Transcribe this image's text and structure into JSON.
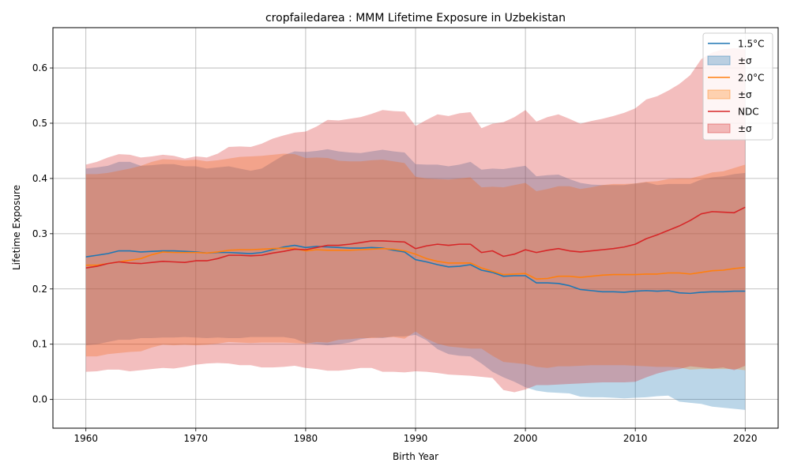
{
  "chart_data": {
    "type": "line",
    "title": "cropfailedarea : MMM Lifetime Exposure in Uzbekistan",
    "xlabel": "Birth Year",
    "ylabel": "Lifetime Exposure",
    "xlim": [
      1957,
      2023
    ],
    "ylim": [
      -0.052,
      0.673
    ],
    "x_ticks": [
      1960,
      1970,
      1980,
      1990,
      2000,
      2010,
      2020
    ],
    "x_tick_labels": [
      "1960",
      "1970",
      "1980",
      "1990",
      "2000",
      "2010",
      "2020"
    ],
    "y_ticks": [
      0.0,
      0.1,
      0.2,
      0.3,
      0.4,
      0.5,
      0.6
    ],
    "y_tick_labels": [
      "0.0",
      "0.1",
      "0.2",
      "0.3",
      "0.4",
      "0.5",
      "0.6"
    ],
    "grid": true,
    "legend_position": "top-right",
    "x": [
      1960,
      1961,
      1962,
      1963,
      1964,
      1965,
      1966,
      1967,
      1968,
      1969,
      1970,
      1971,
      1972,
      1973,
      1974,
      1975,
      1976,
      1977,
      1978,
      1979,
      1980,
      1981,
      1982,
      1983,
      1984,
      1985,
      1986,
      1987,
      1988,
      1989,
      1990,
      1991,
      1992,
      1993,
      1994,
      1995,
      1996,
      1997,
      1998,
      1999,
      2000,
      2001,
      2002,
      2003,
      2004,
      2005,
      2006,
      2007,
      2008,
      2009,
      2010,
      2011,
      2012,
      2013,
      2014,
      2015,
      2016,
      2017,
      2018,
      2019,
      2020
    ],
    "series": [
      {
        "name": "1.5°C",
        "band_label": "±σ",
        "color": "#1f77b4",
        "band_color": "#1f77b4",
        "values": [
          0.258,
          0.261,
          0.264,
          0.269,
          0.269,
          0.267,
          0.268,
          0.269,
          0.269,
          0.268,
          0.267,
          0.265,
          0.266,
          0.266,
          0.265,
          0.264,
          0.266,
          0.271,
          0.276,
          0.279,
          0.275,
          0.277,
          0.276,
          0.275,
          0.274,
          0.274,
          0.275,
          0.274,
          0.27,
          0.267,
          0.253,
          0.249,
          0.244,
          0.24,
          0.241,
          0.244,
          0.234,
          0.23,
          0.223,
          0.224,
          0.224,
          0.211,
          0.211,
          0.21,
          0.206,
          0.199,
          0.197,
          0.195,
          0.195,
          0.194,
          0.196,
          0.197,
          0.196,
          0.197,
          0.193,
          0.192,
          0.194,
          0.195,
          0.195,
          0.196,
          0.196
        ],
        "upper": [
          0.418,
          0.42,
          0.423,
          0.43,
          0.43,
          0.423,
          0.424,
          0.426,
          0.426,
          0.422,
          0.422,
          0.418,
          0.42,
          0.422,
          0.418,
          0.414,
          0.418,
          0.43,
          0.442,
          0.449,
          0.448,
          0.45,
          0.453,
          0.449,
          0.447,
          0.446,
          0.449,
          0.452,
          0.449,
          0.447,
          0.426,
          0.425,
          0.425,
          0.422,
          0.425,
          0.43,
          0.416,
          0.418,
          0.417,
          0.42,
          0.423,
          0.404,
          0.406,
          0.407,
          0.399,
          0.392,
          0.389,
          0.388,
          0.388,
          0.388,
          0.391,
          0.393,
          0.388,
          0.39,
          0.39,
          0.39,
          0.398,
          0.402,
          0.404,
          0.408,
          0.41
        ],
        "lower": [
          0.098,
          0.1,
          0.104,
          0.108,
          0.108,
          0.111,
          0.111,
          0.112,
          0.112,
          0.113,
          0.112,
          0.111,
          0.112,
          0.111,
          0.111,
          0.113,
          0.113,
          0.113,
          0.113,
          0.11,
          0.102,
          0.1,
          0.098,
          0.1,
          0.103,
          0.109,
          0.112,
          0.111,
          0.114,
          0.114,
          0.117,
          0.107,
          0.091,
          0.082,
          0.079,
          0.078,
          0.065,
          0.05,
          0.04,
          0.032,
          0.022,
          0.016,
          0.013,
          0.012,
          0.011,
          0.005,
          0.004,
          0.004,
          0.003,
          0.002,
          0.003,
          0.004,
          0.006,
          0.007,
          -0.004,
          -0.006,
          -0.008,
          -0.013,
          -0.015,
          -0.017,
          -0.019
        ]
      },
      {
        "name": "2.0°C",
        "band_label": "±σ",
        "color": "#ff7f0e",
        "band_color": "#ff7f0e",
        "values": [
          0.243,
          0.243,
          0.246,
          0.249,
          0.252,
          0.255,
          0.262,
          0.267,
          0.266,
          0.266,
          0.266,
          0.265,
          0.267,
          0.27,
          0.271,
          0.271,
          0.272,
          0.273,
          0.274,
          0.273,
          0.269,
          0.271,
          0.27,
          0.27,
          0.27,
          0.271,
          0.272,
          0.273,
          0.272,
          0.269,
          0.263,
          0.255,
          0.25,
          0.247,
          0.247,
          0.247,
          0.238,
          0.232,
          0.226,
          0.227,
          0.228,
          0.218,
          0.219,
          0.223,
          0.223,
          0.221,
          0.223,
          0.225,
          0.226,
          0.226,
          0.226,
          0.227,
          0.227,
          0.229,
          0.229,
          0.227,
          0.23,
          0.233,
          0.234,
          0.237,
          0.239
        ],
        "upper": [
          0.408,
          0.408,
          0.41,
          0.414,
          0.418,
          0.423,
          0.43,
          0.435,
          0.434,
          0.433,
          0.434,
          0.431,
          0.433,
          0.436,
          0.439,
          0.44,
          0.441,
          0.443,
          0.445,
          0.444,
          0.437,
          0.438,
          0.437,
          0.432,
          0.431,
          0.431,
          0.433,
          0.434,
          0.431,
          0.428,
          0.403,
          0.4,
          0.399,
          0.398,
          0.4,
          0.402,
          0.384,
          0.385,
          0.384,
          0.388,
          0.392,
          0.377,
          0.381,
          0.386,
          0.386,
          0.381,
          0.384,
          0.388,
          0.39,
          0.39,
          0.391,
          0.394,
          0.395,
          0.399,
          0.4,
          0.4,
          0.405,
          0.411,
          0.413,
          0.419,
          0.425
        ],
        "lower": [
          0.078,
          0.078,
          0.082,
          0.084,
          0.086,
          0.087,
          0.094,
          0.099,
          0.098,
          0.099,
          0.098,
          0.099,
          0.101,
          0.104,
          0.103,
          0.102,
          0.103,
          0.103,
          0.103,
          0.102,
          0.101,
          0.104,
          0.103,
          0.108,
          0.109,
          0.111,
          0.111,
          0.112,
          0.113,
          0.11,
          0.123,
          0.11,
          0.101,
          0.096,
          0.094,
          0.092,
          0.092,
          0.079,
          0.068,
          0.066,
          0.064,
          0.059,
          0.057,
          0.06,
          0.06,
          0.061,
          0.062,
          0.062,
          0.062,
          0.062,
          0.061,
          0.06,
          0.059,
          0.059,
          0.058,
          0.054,
          0.055,
          0.055,
          0.055,
          0.055,
          0.053
        ]
      },
      {
        "name": "NDC",
        "band_label": "±σ",
        "color": "#d62728",
        "band_color": "#d62728",
        "values": [
          0.238,
          0.241,
          0.246,
          0.249,
          0.247,
          0.246,
          0.248,
          0.25,
          0.249,
          0.248,
          0.251,
          0.251,
          0.255,
          0.261,
          0.261,
          0.26,
          0.261,
          0.265,
          0.268,
          0.272,
          0.271,
          0.275,
          0.279,
          0.279,
          0.281,
          0.284,
          0.287,
          0.287,
          0.286,
          0.285,
          0.273,
          0.278,
          0.281,
          0.279,
          0.281,
          0.281,
          0.266,
          0.269,
          0.259,
          0.263,
          0.271,
          0.266,
          0.27,
          0.273,
          0.269,
          0.267,
          0.269,
          0.271,
          0.273,
          0.276,
          0.281,
          0.291,
          0.298,
          0.306,
          0.314,
          0.324,
          0.336,
          0.34,
          0.339,
          0.338,
          0.348
        ],
        "upper": [
          0.425,
          0.43,
          0.438,
          0.444,
          0.443,
          0.438,
          0.44,
          0.443,
          0.441,
          0.436,
          0.44,
          0.438,
          0.445,
          0.457,
          0.458,
          0.457,
          0.463,
          0.472,
          0.478,
          0.483,
          0.485,
          0.494,
          0.506,
          0.505,
          0.508,
          0.511,
          0.517,
          0.524,
          0.522,
          0.521,
          0.495,
          0.506,
          0.516,
          0.513,
          0.518,
          0.52,
          0.491,
          0.499,
          0.502,
          0.511,
          0.524,
          0.503,
          0.511,
          0.516,
          0.508,
          0.499,
          0.504,
          0.508,
          0.513,
          0.519,
          0.527,
          0.543,
          0.549,
          0.559,
          0.571,
          0.587,
          0.616,
          0.628,
          0.634,
          0.636,
          0.634
        ],
        "lower": [
          0.05,
          0.051,
          0.054,
          0.054,
          0.051,
          0.053,
          0.055,
          0.057,
          0.056,
          0.059,
          0.063,
          0.065,
          0.066,
          0.065,
          0.062,
          0.062,
          0.058,
          0.058,
          0.059,
          0.061,
          0.057,
          0.055,
          0.052,
          0.052,
          0.054,
          0.057,
          0.057,
          0.05,
          0.05,
          0.049,
          0.051,
          0.05,
          0.048,
          0.045,
          0.044,
          0.043,
          0.041,
          0.039,
          0.017,
          0.013,
          0.018,
          0.026,
          0.026,
          0.027,
          0.028,
          0.029,
          0.03,
          0.031,
          0.031,
          0.031,
          0.032,
          0.04,
          0.047,
          0.052,
          0.055,
          0.06,
          0.058,
          0.056,
          0.058,
          0.053,
          0.061
        ]
      }
    ]
  }
}
